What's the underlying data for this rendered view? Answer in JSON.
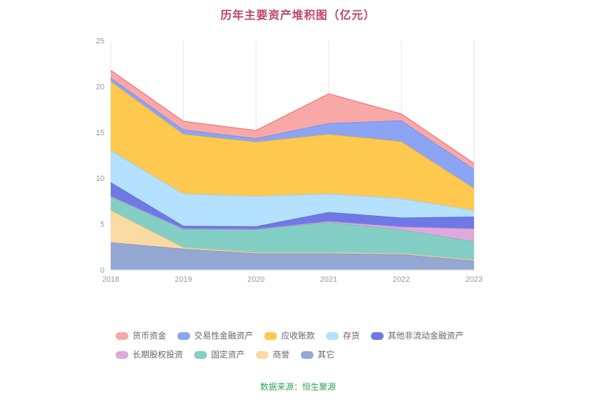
{
  "title": "历年主要资产堆积图（亿元）",
  "footer": {
    "source": "数据来源：恒生聚源"
  },
  "colors": {
    "title": "#C0426B",
    "footer": "#38A158",
    "axis_label": "#999999",
    "grid": "#E7E7E7",
    "axis_line": "#CCCCCC",
    "background": "#FFFFFF"
  },
  "chart_data": {
    "type": "area",
    "stacked": true,
    "grid": "vertical-only",
    "legend_position": "bottom",
    "x": [
      "2018",
      "2019",
      "2020",
      "2021",
      "2022",
      "2023"
    ],
    "xlabel": "",
    "ylabel": "",
    "ylim": [
      0,
      25
    ],
    "yticks": [
      0,
      5,
      10,
      15,
      20,
      25
    ],
    "series": [
      {
        "name": "其它",
        "color": "#93A8D2",
        "line": "#7A93C6",
        "values": [
          3.0,
          2.3,
          1.8,
          1.8,
          1.7,
          1.0
        ]
      },
      {
        "name": "商誉",
        "color": "#FAD9A2",
        "line": "#F5C377",
        "values": [
          3.5,
          0.15,
          0.1,
          0.1,
          0.1,
          0.1
        ]
      },
      {
        "name": "固定资产",
        "color": "#84CFC5",
        "line": "#62BFB2",
        "values": [
          1.5,
          2.0,
          2.5,
          3.3,
          2.6,
          2.0
        ]
      },
      {
        "name": "长期股权投资",
        "color": "#DFA9DC",
        "line": "#D38BCF",
        "values": [
          0.05,
          0.05,
          0.05,
          0.1,
          0.3,
          1.4
        ]
      },
      {
        "name": "其他非流动金融资产",
        "color": "#6F79E4",
        "line": "#5A63DC",
        "values": [
          1.5,
          0.3,
          0.3,
          1.0,
          1.0,
          1.3
        ]
      },
      {
        "name": "存货",
        "color": "#B3E1FE",
        "line": "#8FD0FC",
        "values": [
          3.5,
          3.5,
          3.3,
          2.0,
          2.1,
          0.7
        ]
      },
      {
        "name": "应收账款",
        "color": "#FFC84F",
        "line": "#FFB41F",
        "values": [
          7.5,
          6.5,
          5.9,
          6.5,
          6.2,
          2.4
        ]
      },
      {
        "name": "交易性金融资产",
        "color": "#8CA4F4",
        "line": "#6E8BF0",
        "values": [
          0.4,
          0.5,
          0.4,
          1.2,
          2.3,
          2.1
        ]
      },
      {
        "name": "货币资金",
        "color": "#F9A8A8",
        "line": "#F48080",
        "values": [
          0.8,
          0.9,
          0.85,
          3.2,
          0.7,
          0.6
        ]
      }
    ],
    "legend_order": [
      "货币资金",
      "交易性金融资产",
      "应收账款",
      "存货",
      "其他非流动金融资产",
      "长期股权投资",
      "固定资产",
      "商誉",
      "其它"
    ]
  }
}
